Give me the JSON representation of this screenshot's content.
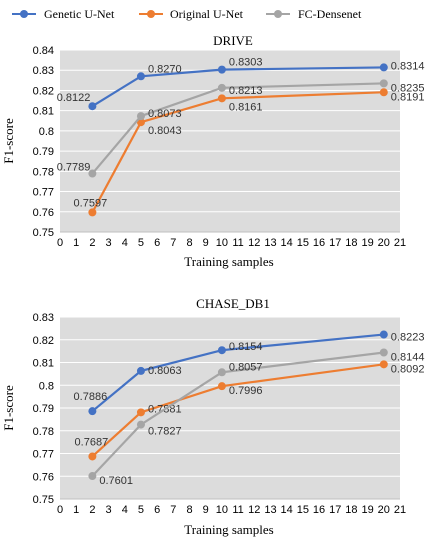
{
  "legend": {
    "items": [
      {
        "name": "Genetic U-Net",
        "color": "#4472C4"
      },
      {
        "name": "Original U-Net",
        "color": "#ED7D31"
      },
      {
        "name": "FC-Densenet",
        "color": "#A5A5A5"
      }
    ]
  },
  "plot_background": "#DCDCDC",
  "chart_data": [
    {
      "type": "line",
      "title": "DRIVE",
      "xlabel": "Training samples",
      "ylabel": "F1-score",
      "xlim": [
        0,
        21
      ],
      "ylim": [
        0.75,
        0.84
      ],
      "x_ticks": [
        "0",
        "1",
        "2",
        "3",
        "4",
        "5",
        "6",
        "7",
        "8",
        "9",
        "10",
        "11",
        "12",
        "13",
        "14",
        "15",
        "16",
        "17",
        "18",
        "19",
        "20",
        "21"
      ],
      "y_ticks": [
        "0.75",
        "0.76",
        "0.77",
        "0.78",
        "0.79",
        "0.8",
        "0.81",
        "0.82",
        "0.83",
        "0.84"
      ],
      "grid": "horizontal",
      "x": [
        2,
        5,
        10,
        20
      ],
      "series": [
        {
          "name": "Genetic U-Net",
          "color": "#4472C4",
          "values": [
            0.8122,
            0.827,
            0.8303,
            0.8314
          ],
          "labels": [
            "0.8122",
            "0.8270",
            "0.8303",
            "0.8314"
          ]
        },
        {
          "name": "Original U-Net",
          "color": "#ED7D31",
          "values": [
            0.7597,
            0.8043,
            0.8161,
            0.8191
          ],
          "labels": [
            "0.7597",
            "0.8043",
            "0.8161",
            "0.8191"
          ]
        },
        {
          "name": "FC-Densenet",
          "color": "#A5A5A5",
          "values": [
            0.7789,
            0.8073,
            0.8213,
            0.8235
          ],
          "labels": [
            "0.7789",
            "0.8073",
            "0.8213",
            "0.8235"
          ]
        }
      ]
    },
    {
      "type": "line",
      "title": "CHASE_DB1",
      "xlabel": "Training samples",
      "ylabel": "F1-score",
      "xlim": [
        0,
        21
      ],
      "ylim": [
        0.75,
        0.83
      ],
      "x_ticks": [
        "0",
        "1",
        "2",
        "3",
        "4",
        "5",
        "6",
        "7",
        "8",
        "9",
        "10",
        "11",
        "12",
        "13",
        "14",
        "15",
        "16",
        "17",
        "18",
        "19",
        "20",
        "21"
      ],
      "y_ticks": [
        "0.75",
        "0.76",
        "0.77",
        "0.78",
        "0.79",
        "0.8",
        "0.81",
        "0.82",
        "0.83"
      ],
      "grid": "horizontal",
      "x": [
        2,
        5,
        10,
        20
      ],
      "series": [
        {
          "name": "Genetic U-Net",
          "color": "#4472C4",
          "values": [
            0.7886,
            0.8063,
            0.8154,
            0.8223
          ],
          "labels": [
            "0.7886",
            "0.8063",
            "0.8154",
            "0.8223"
          ]
        },
        {
          "name": "Original U-Net",
          "color": "#ED7D31",
          "values": [
            0.7687,
            0.7881,
            0.7996,
            0.8092
          ],
          "labels": [
            "0.7687",
            "0.7881",
            "0.7996",
            "0.8092"
          ]
        },
        {
          "name": "FC-Densenet",
          "color": "#A5A5A5",
          "values": [
            0.7601,
            0.7827,
            0.8057,
            0.8144
          ],
          "labels": [
            "0.7601",
            "0.7827",
            "0.8057",
            "0.8144"
          ]
        }
      ]
    }
  ]
}
